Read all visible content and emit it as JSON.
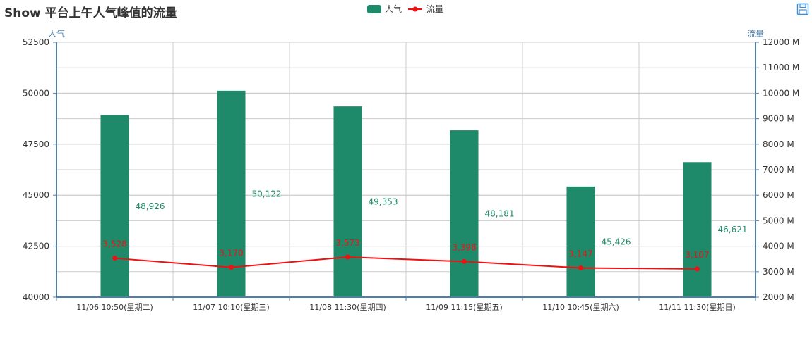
{
  "chart_data": {
    "type": "bar",
    "title": "Show 平台上午人气峰值的流量",
    "categories": [
      "11/06 10:50(星期二)",
      "11/07 10:10(星期三)",
      "11/08 11:30(星期四)",
      "11/09 11:15(星期五)",
      "11/10 10:45(星期六)",
      "11/11 11:30(星期日)"
    ],
    "series": [
      {
        "name": "人气",
        "type": "bar",
        "axis": "left",
        "color": "#1f8a6a",
        "values": [
          48926,
          50122,
          49353,
          48181,
          45426,
          46621
        ],
        "labels": [
          "48,926",
          "50,122",
          "49,353",
          "48,181",
          "45,426",
          "46,621"
        ]
      },
      {
        "name": "流量",
        "type": "line",
        "axis": "right",
        "color": "#ee1111",
        "values": [
          3528,
          3170,
          3573,
          3398,
          3147,
          3107
        ],
        "labels": [
          "3,528",
          "3,170",
          "3,573",
          "3,398",
          "3,147",
          "3,107"
        ]
      }
    ],
    "ylabel_left": "人气",
    "ylabel_right": "流量",
    "ylim_left": [
      40000,
      52500
    ],
    "yticks_left": [
      "52500",
      "50000",
      "47500",
      "45000",
      "42500",
      "40000"
    ],
    "ylim_right": [
      2000,
      12000
    ],
    "yticks_right": [
      "12000 M",
      "11000 M",
      "10000 M",
      "9000 M",
      "8000 M",
      "7000 M",
      "6000 M",
      "5000 M",
      "4000 M",
      "3000 M",
      "2000 M"
    ],
    "grid": true,
    "legend": "top-center"
  },
  "toolbar": {
    "save_icon": "save-icon"
  },
  "colors": {
    "bar": "#1f8a6a",
    "line": "#ee1111",
    "axis": "#4d7fa8",
    "grid": "#cccccc"
  }
}
